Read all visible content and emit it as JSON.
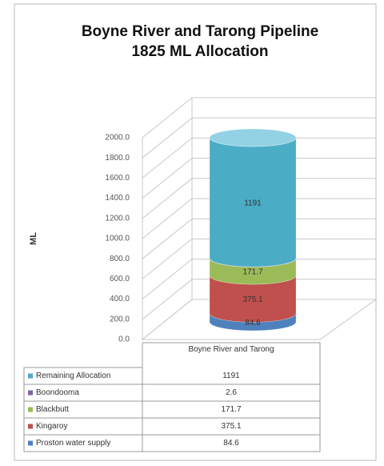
{
  "chart_data": {
    "type": "stacked_cylinder",
    "title": [
      "Boyne River and Tarong Pipeline",
      "1825 ML Allocation"
    ],
    "y_label": "ML",
    "categories": [
      "Boyne River and Tarong"
    ],
    "series": [
      {
        "name": "Proston water supply",
        "color": "#4f81bd",
        "values": [
          84.6
        ]
      },
      {
        "name": "Kingaroy",
        "color": "#c0504d",
        "values": [
          375.1
        ]
      },
      {
        "name": "Blackbutt",
        "color": "#9bbb59",
        "values": [
          171.7
        ]
      },
      {
        "name": "Boondooma",
        "color": "#8064a2",
        "values": [
          2.6
        ]
      },
      {
        "name": "Remaining Allocation",
        "color": "#4bacc6",
        "values": [
          1191
        ]
      }
    ],
    "ylim": [
      0,
      2000
    ],
    "yticks": [
      {
        "value": 0,
        "label": "0.0"
      },
      {
        "value": 200,
        "label": "200.0"
      },
      {
        "value": 400,
        "label": "400.0"
      },
      {
        "value": 600,
        "label": "600.0"
      },
      {
        "value": 800,
        "label": "800.0"
      },
      {
        "value": 1000,
        "label": "1000.0"
      },
      {
        "value": 1200,
        "label": "1200.0"
      },
      {
        "value": 1400,
        "label": "1400.0"
      },
      {
        "value": 1600,
        "label": "1600.0"
      },
      {
        "value": 1800,
        "label": "1800.0"
      },
      {
        "value": 2000,
        "label": "2000.0"
      }
    ],
    "grid": true,
    "data_table": true
  }
}
